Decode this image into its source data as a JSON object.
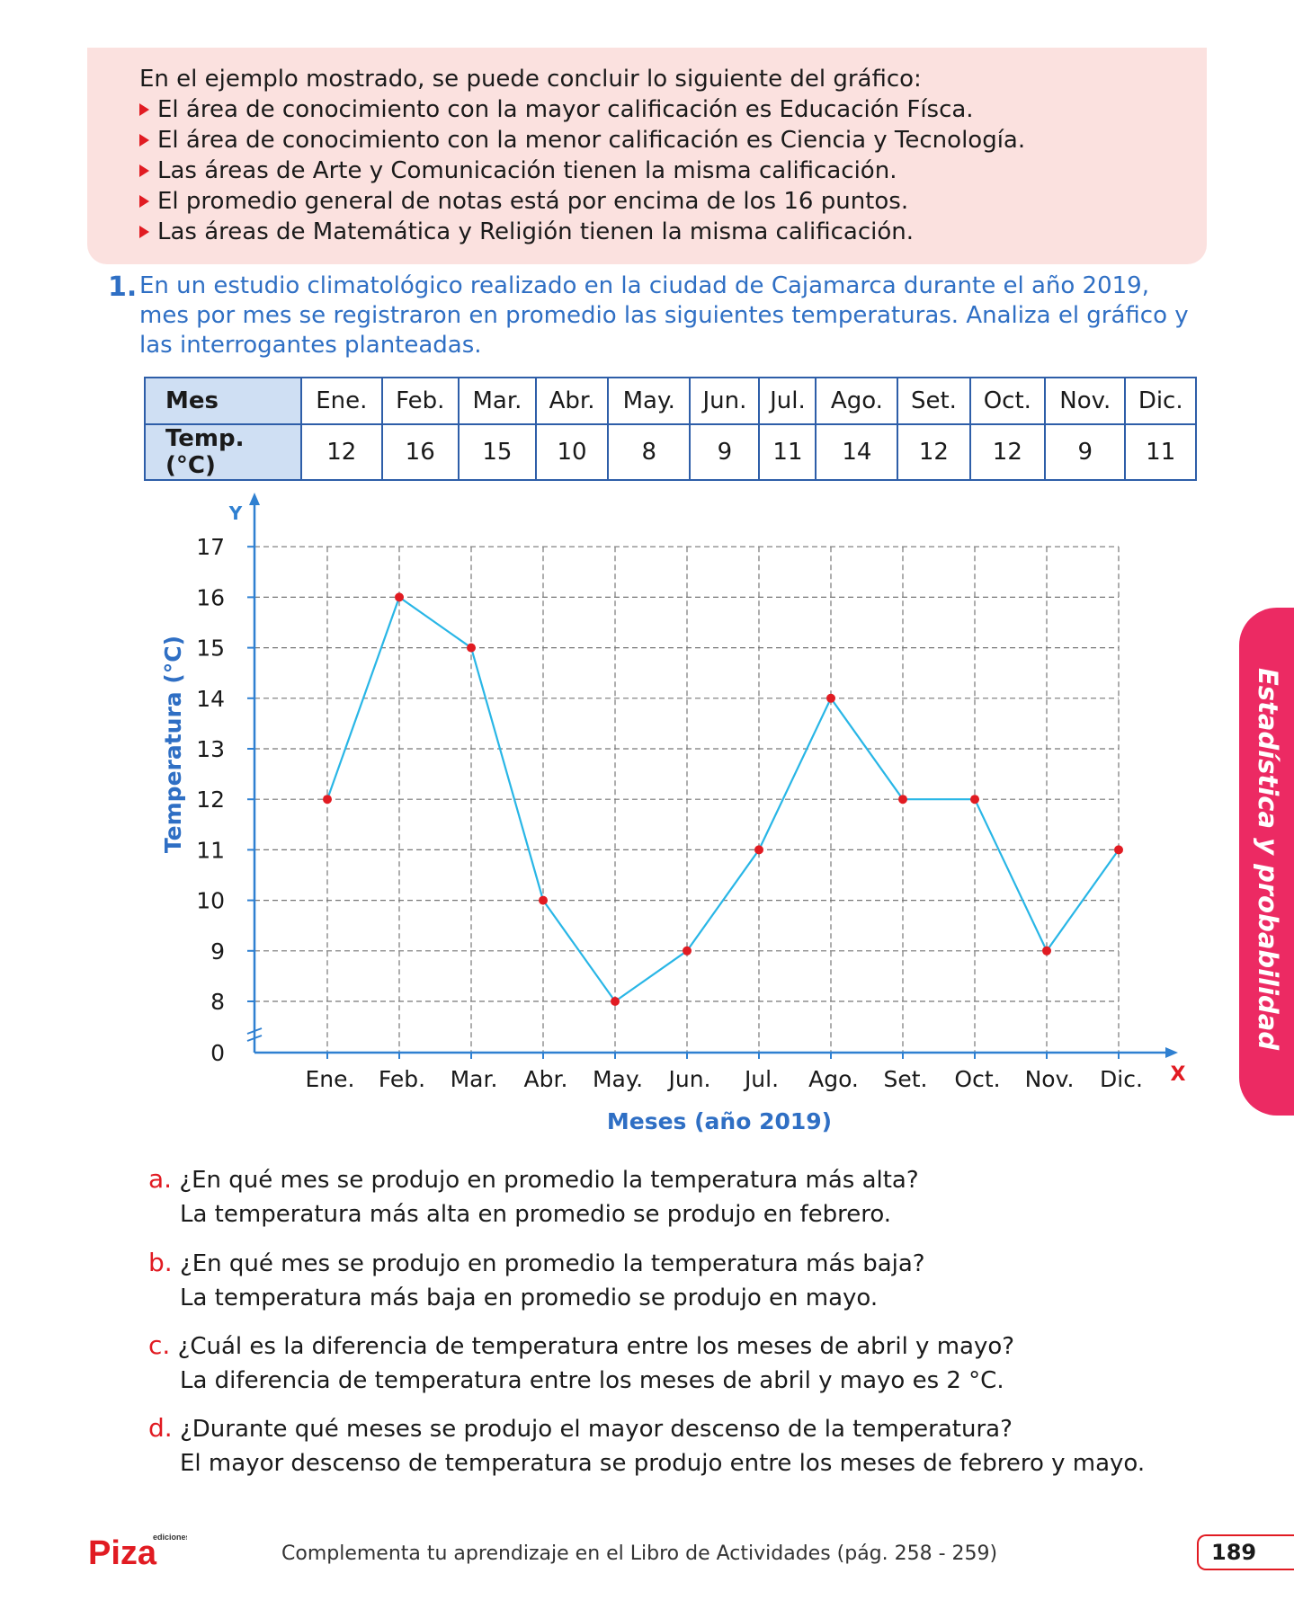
{
  "summary": {
    "intro": "En el ejemplo mostrado, se puede concluir lo siguiente del gráfico:",
    "items": [
      "El área de conocimiento con la mayor calificación es Educación Físca.",
      "El área de conocimiento con la menor calificación es Ciencia y Tecnología.",
      "Las áreas de Arte y Comunicación tienen la misma calificación.",
      "El promedio general de notas está por encima de los 16 puntos.",
      "Las áreas de Matemática y Religión tienen la misma calificación."
    ]
  },
  "problem": {
    "number": "1.",
    "text": "En un estudio climatológico realizado en la ciudad de Cajamarca durante el año 2019, mes por mes se registraron en promedio las siguientes temperaturas. Analiza el gráfico y las interrogantes planteadas."
  },
  "table": {
    "row1_label": "Mes",
    "row2_label": "Temp. (°C)",
    "months": [
      "Ene.",
      "Feb.",
      "Mar.",
      "Abr.",
      "May.",
      "Jun.",
      "Jul.",
      "Ago.",
      "Set.",
      "Oct.",
      "Nov.",
      "Dic."
    ],
    "temps": [
      "12",
      "16",
      "15",
      "10",
      "8",
      "9",
      "11",
      "14",
      "12",
      "12",
      "9",
      "11"
    ]
  },
  "chart_data": {
    "type": "line",
    "x": [
      "Ene.",
      "Feb.",
      "Mar.",
      "Abr.",
      "May.",
      "Jun.",
      "Jul.",
      "Ago.",
      "Set.",
      "Oct.",
      "Nov.",
      "Dic."
    ],
    "series": [
      {
        "values": [
          12,
          16,
          15,
          10,
          8,
          9,
          11,
          14,
          12,
          12,
          9,
          11
        ]
      }
    ],
    "yticks": [
      "0",
      "8",
      "9",
      "10",
      "11",
      "12",
      "13",
      "14",
      "15",
      "16",
      "17"
    ],
    "xlabel": "Meses (año 2019)",
    "ylabel": "Temperatura (°C)",
    "x_axis_letter": "X",
    "y_axis_letter": "Y",
    "ylim": [
      8,
      17
    ],
    "y_axis_break": true,
    "grid": true,
    "line_color": "#29b6e6",
    "point_color": "#e11b22"
  },
  "questions": [
    {
      "letter": "a.",
      "question": "¿En qué mes se produjo en promedio la temperatura más alta?",
      "answer": "La temperatura más alta en promedio se produjo en febrero."
    },
    {
      "letter": "b.",
      "question": "¿En qué mes se produjo en promedio la temperatura más baja?",
      "answer": "La temperatura más baja en promedio se produjo en mayo."
    },
    {
      "letter": "c.",
      "question": "¿Cuál es la diferencia de temperatura entre los meses de abril y mayo?",
      "answer": "La diferencia de temperatura entre los meses de abril y mayo es 2 °C."
    },
    {
      "letter": "d.",
      "question": "¿Durante qué meses se produjo el mayor descenso de la temperatura?",
      "answer": "El mayor descenso de temperatura se produjo entre los meses de febrero y mayo."
    }
  ],
  "side_tab": "Estadística y probabilidad",
  "footer": {
    "logo_text": "Piza",
    "logo_small": "ediciones",
    "text": "Complementa tu aprendizaje en el Libro de Actividades (pág. 258 - 259)",
    "page": "189"
  }
}
